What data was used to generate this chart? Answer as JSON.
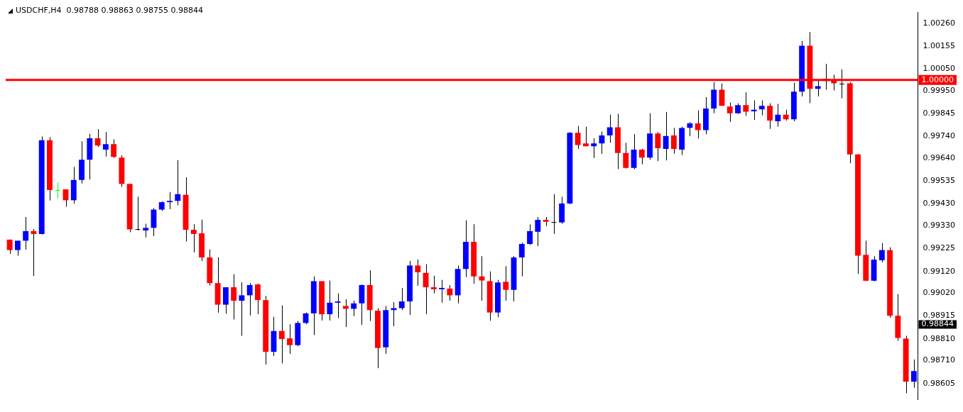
{
  "chart_data": {
    "type": "candlestick",
    "title": "USDCHF,H4  0.98788 0.98863 0.98755 0.98844",
    "categories": [
      null,
      null,
      null,
      null,
      null,
      null,
      null,
      null,
      null,
      null,
      null,
      null,
      null,
      null,
      null,
      null,
      null,
      null,
      null,
      null,
      null,
      null,
      null,
      null,
      null,
      null,
      null,
      null,
      null,
      null,
      null,
      null,
      null,
      null,
      null,
      null,
      null,
      null,
      null,
      null,
      null,
      null,
      null,
      null,
      null,
      null,
      null,
      null,
      null,
      null,
      null,
      null,
      null,
      null,
      null,
      null,
      null,
      null,
      null,
      null,
      null,
      null,
      null,
      null,
      null,
      null,
      null,
      null,
      null,
      null,
      null,
      null,
      null,
      null,
      null,
      null,
      null,
      null,
      null,
      null,
      null,
      null,
      null,
      null,
      null,
      null,
      null,
      null,
      null,
      null,
      null,
      null,
      null,
      null,
      null,
      null,
      null,
      null,
      null,
      null,
      null,
      null,
      null,
      null,
      null,
      null,
      null,
      null,
      null,
      null,
      null,
      null,
      null,
      null
    ],
    "ohlc": [
      [
        0.99266,
        0.99266,
        0.99201,
        0.99218
      ],
      [
        0.99218,
        0.99261,
        0.99192,
        0.99261
      ],
      [
        0.99261,
        0.9937,
        0.9922,
        0.99305
      ],
      [
        0.99305,
        0.99315,
        0.99099,
        0.99292
      ],
      [
        0.99292,
        0.9974,
        0.9929,
        0.99723
      ],
      [
        0.99723,
        0.99737,
        0.99446,
        0.99494
      ],
      [
        0.99494,
        0.99528,
        0.99455,
        0.99494
      ],
      [
        0.99497,
        0.99497,
        0.99417,
        0.99447
      ],
      [
        0.99447,
        0.996,
        0.99431,
        0.9954
      ],
      [
        0.9954,
        0.99718,
        0.99524,
        0.99633
      ],
      [
        0.99633,
        0.99752,
        0.99542,
        0.99732
      ],
      [
        0.99732,
        0.99774,
        0.99692,
        0.99698
      ],
      [
        0.9968,
        0.99761,
        0.99648,
        0.99705
      ],
      [
        0.99705,
        0.99727,
        0.99641,
        0.99646
      ],
      [
        0.99643,
        0.99653,
        0.99508,
        0.99522
      ],
      [
        0.99522,
        0.99522,
        0.993,
        0.99313
      ],
      [
        0.99313,
        0.99463,
        0.99308,
        0.99313
      ],
      [
        0.99308,
        0.99339,
        0.99276,
        0.9932
      ],
      [
        0.9932,
        0.99411,
        0.99282,
        0.99404
      ],
      [
        0.99404,
        0.99442,
        0.99398,
        0.99438
      ],
      [
        0.99438,
        0.99485,
        0.99406,
        0.99444
      ],
      [
        0.99444,
        0.99631,
        0.99424,
        0.99475
      ],
      [
        0.99472,
        0.99553,
        0.99257,
        0.99311
      ],
      [
        0.99311,
        0.99337,
        0.99207,
        0.99292
      ],
      [
        0.99295,
        0.99358,
        0.99167,
        0.99184
      ],
      [
        0.99184,
        0.99221,
        0.99055,
        0.99066
      ],
      [
        0.99066,
        0.99185,
        0.9893,
        0.98967
      ],
      [
        0.98967,
        0.99047,
        0.98925,
        0.99047
      ],
      [
        0.99047,
        0.99107,
        0.98899,
        0.98985
      ],
      [
        0.98985,
        0.9907,
        0.98824,
        0.9901
      ],
      [
        0.9901,
        0.99066,
        0.98917,
        0.99057
      ],
      [
        0.9906,
        0.99063,
        0.98923,
        0.98988
      ],
      [
        0.98988,
        0.99007,
        0.98691,
        0.9875
      ],
      [
        0.9875,
        0.98911,
        0.98731,
        0.98846
      ],
      [
        0.98846,
        0.98964,
        0.98697,
        0.98809
      ],
      [
        0.98812,
        0.98877,
        0.98741,
        0.98781
      ],
      [
        0.98781,
        0.98892,
        0.98776,
        0.98883
      ],
      [
        0.98883,
        0.98931,
        0.98877,
        0.98927
      ],
      [
        0.98927,
        0.99097,
        0.98827,
        0.99075
      ],
      [
        0.99075,
        0.99075,
        0.98894,
        0.98923
      ],
      [
        0.98923,
        0.99078,
        0.98894,
        0.98976
      ],
      [
        0.98976,
        0.99019,
        0.98905,
        0.98982
      ],
      [
        0.98961,
        0.98992,
        0.98864,
        0.98948
      ],
      [
        0.98948,
        0.98985,
        0.98914,
        0.98973
      ],
      [
        0.98973,
        0.9906,
        0.98874,
        0.99057
      ],
      [
        0.99057,
        0.99125,
        0.98892,
        0.98942
      ],
      [
        0.98939,
        0.98951,
        0.98675,
        0.98768
      ],
      [
        0.98771,
        0.98961,
        0.98741,
        0.98942
      ],
      [
        0.98942,
        0.98979,
        0.98868,
        0.98951
      ],
      [
        0.98951,
        0.99044,
        0.98942,
        0.98982
      ],
      [
        0.98982,
        0.99168,
        0.9892,
        0.99147
      ],
      [
        0.99147,
        0.99175,
        0.99054,
        0.99116
      ],
      [
        0.99113,
        0.99153,
        0.98923,
        0.99047
      ],
      [
        0.99047,
        0.991,
        0.99019,
        0.99038
      ],
      [
        0.99038,
        0.99081,
        0.98976,
        0.99044
      ],
      [
        0.99041,
        0.99057,
        0.98985,
        0.9901
      ],
      [
        0.9901,
        0.99147,
        0.98973,
        0.99131
      ],
      [
        0.99131,
        0.99355,
        0.99094,
        0.99256
      ],
      [
        0.99256,
        0.99337,
        0.99063,
        0.99097
      ],
      [
        0.99097,
        0.9919,
        0.98985,
        0.99078
      ],
      [
        0.99075,
        0.9912,
        0.98893,
        0.98931
      ],
      [
        0.98931,
        0.99081,
        0.98909,
        0.99069
      ],
      [
        0.99072,
        0.99144,
        0.98985,
        0.99035
      ],
      [
        0.99035,
        0.9919,
        0.98982,
        0.99184
      ],
      [
        0.99184,
        0.99252,
        0.99097,
        0.99246
      ],
      [
        0.99246,
        0.99336,
        0.99241,
        0.99305
      ],
      [
        0.99302,
        0.9937,
        0.99236,
        0.99357
      ],
      [
        0.99357,
        0.9937,
        0.99328,
        0.99348
      ],
      [
        0.99347,
        0.99475,
        0.99292,
        0.99347
      ],
      [
        0.99345,
        0.99463,
        0.99339,
        0.99432
      ],
      [
        0.99432,
        0.9976,
        0.99429,
        0.99757
      ],
      [
        0.99757,
        0.99788,
        0.99683,
        0.99701
      ],
      [
        0.99708,
        0.99785,
        0.99695,
        0.99695
      ],
      [
        0.99695,
        0.99732,
        0.99641,
        0.99708
      ],
      [
        0.99708,
        0.99763,
        0.9966,
        0.99745
      ],
      [
        0.99745,
        0.99841,
        0.99711,
        0.99782
      ],
      [
        0.99782,
        0.99844,
        0.9959,
        0.99664
      ],
      [
        0.99664,
        0.99711,
        0.99593,
        0.99596
      ],
      [
        0.99596,
        0.99751,
        0.9959,
        0.9968
      ],
      [
        0.9968,
        0.99683,
        0.99612,
        0.99643
      ],
      [
        0.99643,
        0.99847,
        0.99633,
        0.99754
      ],
      [
        0.99754,
        0.9976,
        0.99627,
        0.99686
      ],
      [
        0.99683,
        0.99853,
        0.9963,
        0.99742
      ],
      [
        0.99745,
        0.99779,
        0.99661,
        0.99683
      ],
      [
        0.9968,
        0.99785,
        0.99655,
        0.99779
      ],
      [
        0.9978,
        0.99806,
        0.99741,
        0.998
      ],
      [
        0.998,
        0.9986,
        0.99731,
        0.99769
      ],
      [
        0.99769,
        0.99921,
        0.9975,
        0.99869
      ],
      [
        0.99869,
        0.9999,
        0.99847,
        0.99955
      ],
      [
        0.99955,
        0.99984,
        0.99881,
        0.99881
      ],
      [
        0.99878,
        0.99896,
        0.99807,
        0.99847
      ],
      [
        0.99847,
        0.99893,
        0.99844,
        0.99884
      ],
      [
        0.99884,
        0.99943,
        0.99835,
        0.99854
      ],
      [
        0.99856,
        0.99906,
        0.99816,
        0.99863
      ],
      [
        0.99865,
        0.99906,
        0.99837,
        0.99881
      ],
      [
        0.99881,
        0.99893,
        0.99775,
        0.99813
      ],
      [
        0.9981,
        0.9989,
        0.99785,
        0.9984
      ],
      [
        0.9984,
        0.99863,
        0.99813,
        0.99819
      ],
      [
        0.99819,
        0.99987,
        0.9981,
        0.99946
      ],
      [
        0.99946,
        1.00179,
        0.99924,
        1.00157
      ],
      [
        1.00157,
        1.0022,
        0.99893,
        0.99959
      ],
      [
        0.99959,
        0.99996,
        0.99924,
        0.99971
      ],
      [
        0.99995,
        1.00074,
        0.99955,
        1.00005
      ],
      [
        0.99997,
        1.00024,
        0.99952,
        0.99984
      ],
      [
        0.99984,
        1.00049,
        0.99915,
        0.99984
      ],
      [
        0.99984,
        0.9999,
        0.99617,
        0.99658
      ],
      [
        0.99658,
        0.99658,
        0.99108,
        0.99192
      ],
      [
        0.99196,
        0.99261,
        0.99075,
        0.99077
      ],
      [
        0.99077,
        0.9919,
        0.99075,
        0.99174
      ],
      [
        0.99171,
        0.9925,
        0.99161,
        0.99218
      ],
      [
        0.99218,
        0.99231,
        0.98907,
        0.98916
      ],
      [
        0.98916,
        0.99016,
        0.98801,
        0.98814
      ],
      [
        0.98811,
        0.98824,
        0.9856,
        0.98613
      ],
      [
        0.98613,
        0.98715,
        0.98585,
        0.98662
      ]
    ],
    "colors": [
      "#ff0000",
      "#0000ff",
      "#0000ff",
      "#ff0000",
      "#0000ff",
      "#ff0000",
      "#00ff00",
      "#ff0000",
      "#0000ff",
      "#0000ff",
      "#0000ff",
      "#ff0000",
      "#0000ff",
      "#ff0000",
      "#ff0000",
      "#ff0000",
      "#000000",
      "#0000ff",
      "#0000ff",
      "#0000ff",
      "#0000ff",
      "#0000ff",
      "#ff0000",
      "#ff0000",
      "#ff0000",
      "#ff0000",
      "#ff0000",
      "#0000ff",
      "#ff0000",
      "#0000ff",
      "#0000ff",
      "#ff0000",
      "#ff0000",
      "#0000ff",
      "#ff0000",
      "#ff0000",
      "#0000ff",
      "#0000ff",
      "#0000ff",
      "#ff0000",
      "#0000ff",
      "#0000ff",
      "#ff0000",
      "#0000ff",
      "#0000ff",
      "#ff0000",
      "#ff0000",
      "#0000ff",
      "#0000ff",
      "#0000ff",
      "#0000ff",
      "#ff0000",
      "#ff0000",
      "#ff0000",
      "#0000ff",
      "#ff0000",
      "#0000ff",
      "#0000ff",
      "#ff0000",
      "#ff0000",
      "#ff0000",
      "#0000ff",
      "#ff0000",
      "#0000ff",
      "#0000ff",
      "#0000ff",
      "#0000ff",
      "#ff0000",
      "#000000",
      "#0000ff",
      "#0000ff",
      "#ff0000",
      "#ff0000",
      "#0000ff",
      "#0000ff",
      "#0000ff",
      "#ff0000",
      "#ff0000",
      "#0000ff",
      "#ff0000",
      "#0000ff",
      "#ff0000",
      "#0000ff",
      "#ff0000",
      "#0000ff",
      "#0000ff",
      "#ff0000",
      "#0000ff",
      "#0000ff",
      "#ff0000",
      "#ff0000",
      "#0000ff",
      "#ff0000",
      "#0000ff",
      "#0000ff",
      "#ff0000",
      "#0000ff",
      "#ff0000",
      "#0000ff",
      "#0000ff",
      "#ff0000",
      "#0000ff",
      "#0000ff",
      "#ff0000",
      "#000000",
      "#ff0000",
      "#ff0000",
      "#ff0000",
      "#0000ff",
      "#0000ff",
      "#ff0000",
      "#ff0000",
      "#ff0000",
      "#0000ff"
    ],
    "ylim": [
      0.98531,
      1.0031
    ],
    "yticks": [
      {
        "value": 1.0026,
        "label": "1.00260"
      },
      {
        "value": 1.00155,
        "label": "1.00155"
      },
      {
        "value": 1.0005,
        "label": "1.00050"
      },
      {
        "value": 0.9995,
        "label": "0.99950"
      },
      {
        "value": 0.99845,
        "label": "0.99845"
      },
      {
        "value": 0.9974,
        "label": "0.99740"
      },
      {
        "value": 0.9964,
        "label": "0.99640"
      },
      {
        "value": 0.99535,
        "label": "0.99535"
      },
      {
        "value": 0.9943,
        "label": "0.99430"
      },
      {
        "value": 0.9933,
        "label": "0.99330"
      },
      {
        "value": 0.99225,
        "label": "0.99225"
      },
      {
        "value": 0.9912,
        "label": "0.99120"
      },
      {
        "value": 0.9902,
        "label": "0.99020"
      },
      {
        "value": 0.98915,
        "label": "0.98915"
      },
      {
        "value": 0.9881,
        "label": "0.98810"
      },
      {
        "value": 0.9871,
        "label": "0.98710"
      },
      {
        "value": 0.98605,
        "label": "0.98605"
      }
    ],
    "ref_lines": [
      {
        "axis": "y",
        "value": 1.0,
        "label": "1.00000",
        "color": "#ff0000",
        "line_style": "solid"
      }
    ],
    "annotations": [
      "0.98844"
    ],
    "grid": false,
    "legend": false,
    "tick_labels": "y"
  }
}
